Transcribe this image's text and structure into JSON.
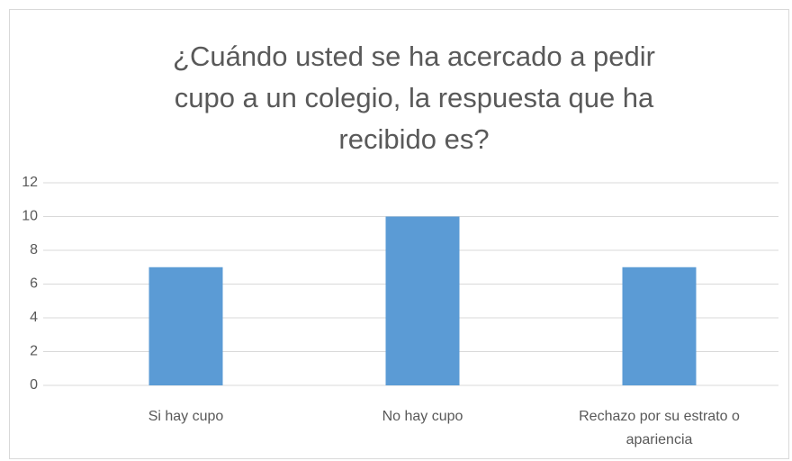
{
  "chart_data": {
    "type": "bar",
    "title": "¿Cuándo usted se ha acercado a pedir cupo a un colegio, la respuesta que ha recibido es?",
    "categories": [
      "Si hay cupo",
      "No hay cupo",
      "Rechazo por su estrato o apariencia"
    ],
    "values": [
      7,
      10,
      7
    ],
    "color": "#5b9bd5",
    "ylim": [
      0,
      12
    ],
    "yticks": [
      0,
      2,
      4,
      6,
      8,
      10,
      12
    ],
    "grid": true
  }
}
